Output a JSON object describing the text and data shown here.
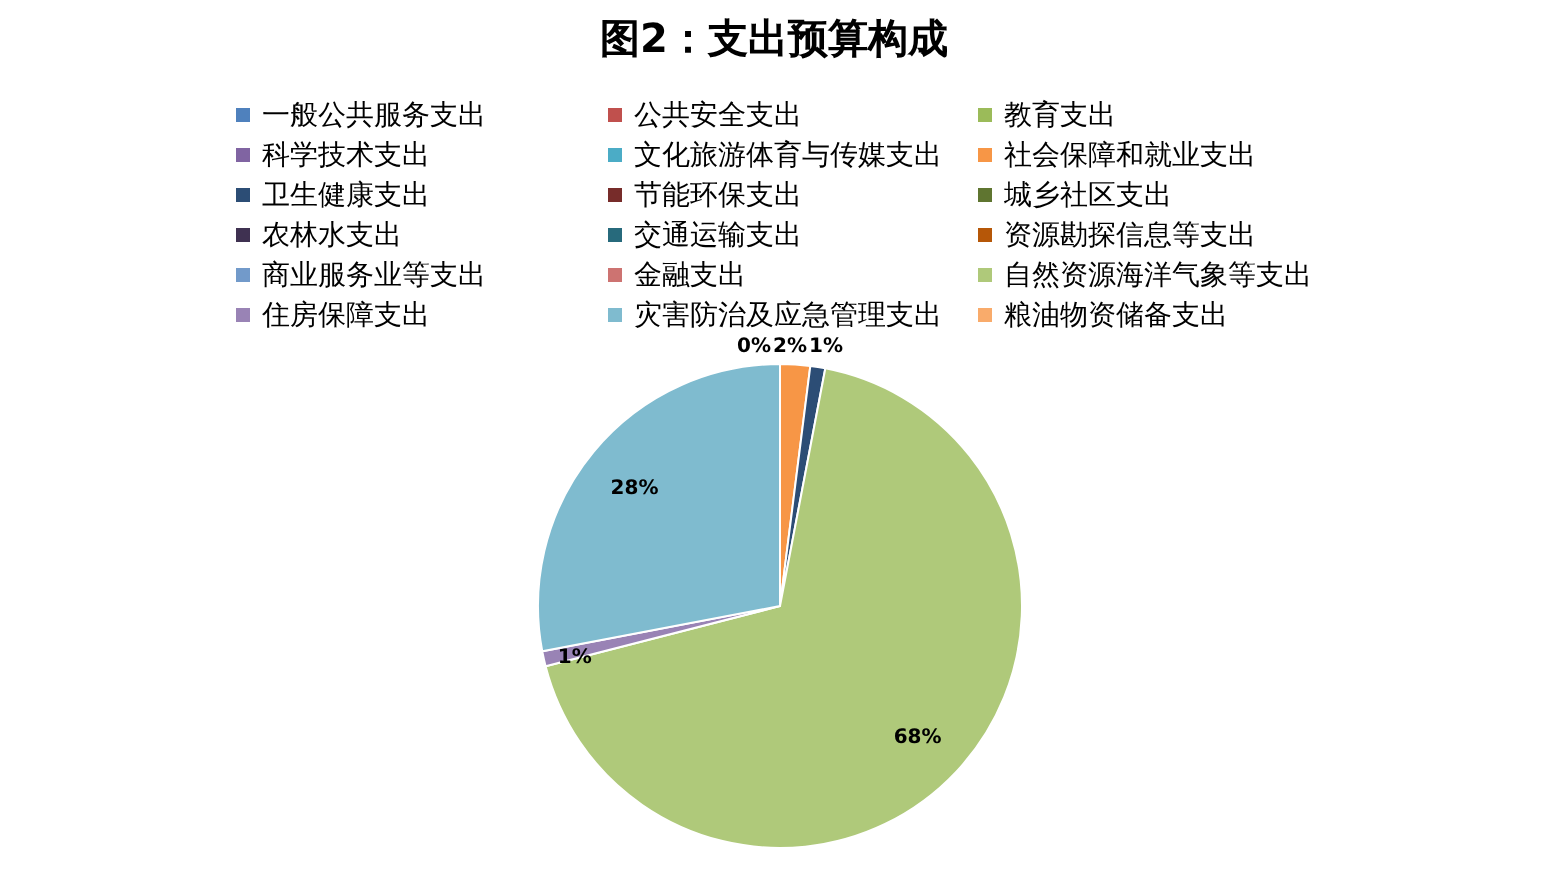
{
  "chart_data": {
    "type": "pie",
    "title": "图2：支出预算构成",
    "legend": "top",
    "categories": [
      "一般公共服务支出",
      "公共安全支出",
      "教育支出",
      "科学技术支出",
      "文化旅游体育与传媒支出",
      "社会保障和就业支出",
      "卫生健康支出",
      "节能环保支出",
      "城乡社区支出",
      "农林水支出",
      "交通运输支出",
      "资源勘探信息等支出",
      "商业服务业等支出",
      "金融支出",
      "自然资源海洋气象等支出",
      "住房保障支出",
      "灾害防治及应急管理支出",
      "粮油物资储备支出"
    ],
    "values": [
      0,
      0,
      0,
      0,
      0,
      2,
      1,
      0,
      0,
      0,
      0,
      0,
      0,
      0,
      68,
      1,
      28,
      0
    ],
    "colors": [
      "#4f81bd",
      "#c0504d",
      "#9bbb59",
      "#8064a2",
      "#4bacc6",
      "#f79646",
      "#2c4d75",
      "#772c2a",
      "#5f7530",
      "#3f3151",
      "#276a7c",
      "#b65708",
      "#729aca",
      "#cd7371",
      "#afc97a",
      "#9983b5",
      "#7fbbcf",
      "#f9ab6b"
    ],
    "value_labels": [
      null,
      null,
      null,
      null,
      "0%",
      "2%",
      "1%",
      null,
      null,
      null,
      null,
      null,
      null,
      null,
      "68%",
      "1%",
      "28%",
      null
    ]
  }
}
